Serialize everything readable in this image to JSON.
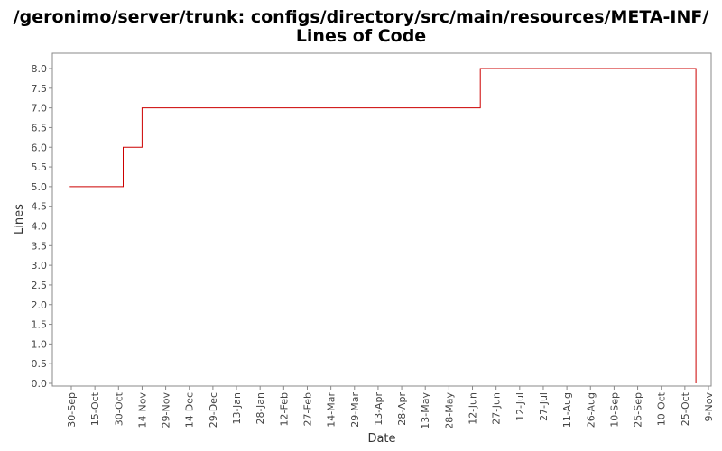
{
  "chart_data": {
    "type": "line",
    "step": true,
    "title_lines": [
      "/geronimo/server/trunk: configs/directory/src/main/resources/META-INF/",
      "Lines of Code"
    ],
    "xlabel": "Date",
    "ylabel": "Lines",
    "ylim": [
      0,
      8.2
    ],
    "yticks": [
      "0.0",
      "0.5",
      "1.0",
      "1.5",
      "2.0",
      "2.5",
      "3.0",
      "3.5",
      "4.0",
      "4.5",
      "5.0",
      "5.5",
      "6.0",
      "6.5",
      "7.0",
      "7.5",
      "8.0"
    ],
    "xticks": [
      "30-Sep",
      "15-Oct",
      "30-Oct",
      "14-Nov",
      "29-Nov",
      "14-Dec",
      "29-Dec",
      "13-Jan",
      "28-Jan",
      "12-Feb",
      "27-Feb",
      "14-Mar",
      "29-Mar",
      "13-Apr",
      "28-Apr",
      "13-May",
      "28-May",
      "12-Jun",
      "27-Jun",
      "12-Jul",
      "27-Jul",
      "11-Aug",
      "26-Aug",
      "10-Sep",
      "25-Sep",
      "10-Oct",
      "25-Oct",
      "9-Nov"
    ],
    "grid": false,
    "line_color": "#cc0000",
    "series": [
      {
        "points": [
          {
            "x": "29-Sep",
            "y": 5
          },
          {
            "x": "2-Nov",
            "y": 6
          },
          {
            "x": "14-Nov",
            "y": 7
          },
          {
            "x": "17-Jun",
            "y": 8
          },
          {
            "x": "1-Nov",
            "y": 8
          },
          {
            "x": "1-Nov",
            "y": 0
          }
        ]
      }
    ]
  }
}
